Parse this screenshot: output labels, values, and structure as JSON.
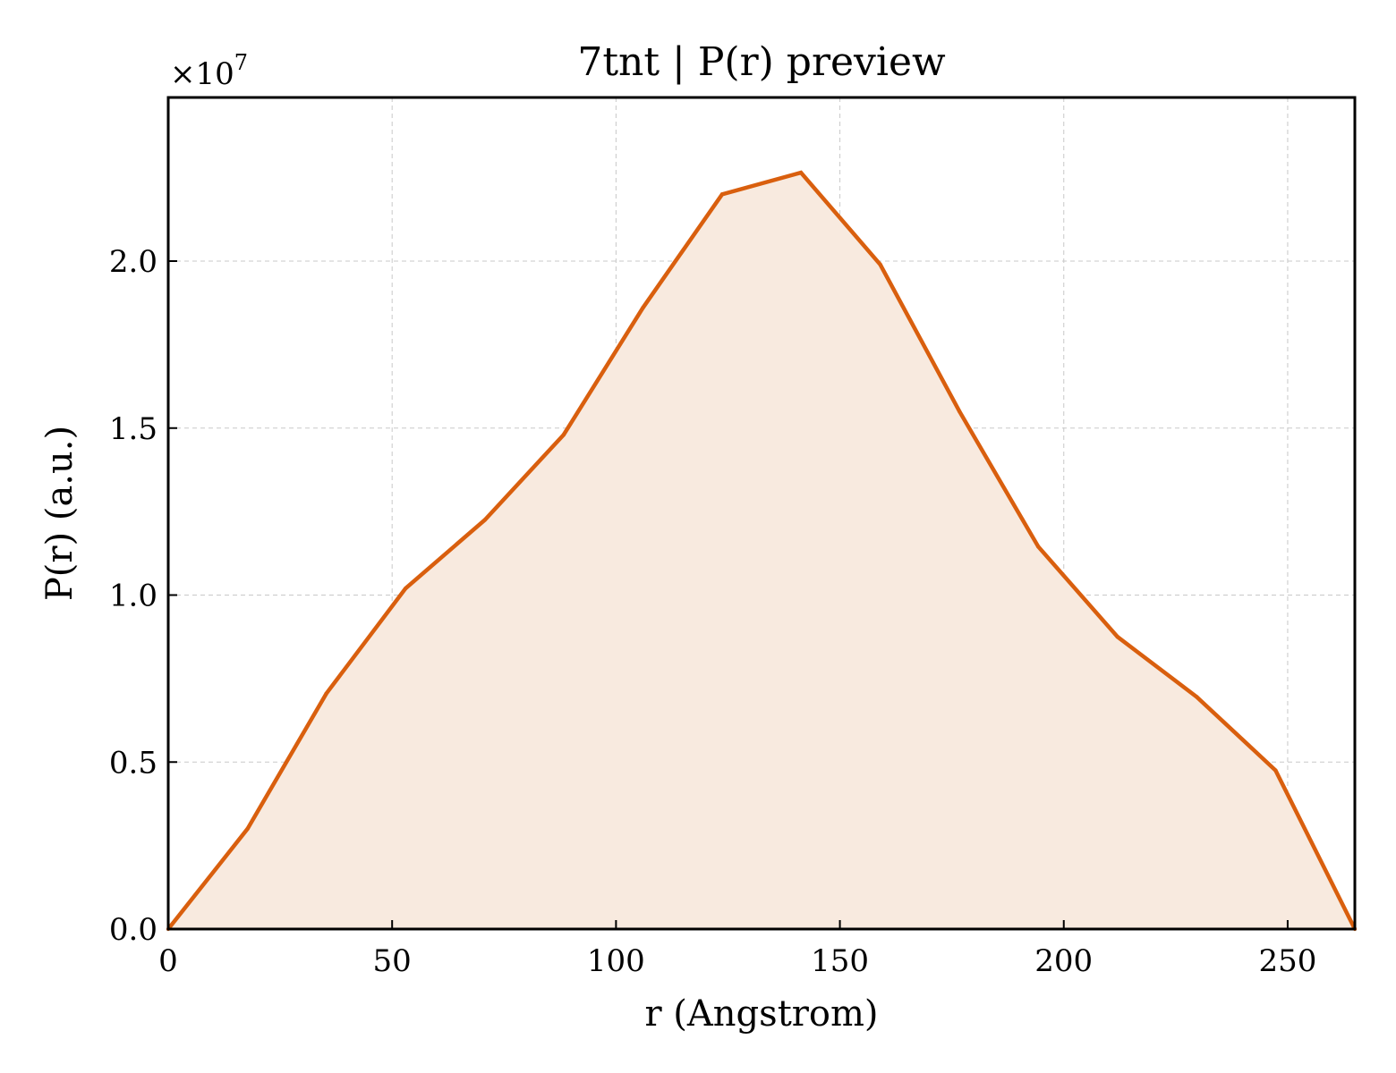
{
  "chart_data": {
    "type": "area",
    "title": "7tnt | P(r) preview",
    "xlabel": "r (Angstrom)",
    "ylabel": "P(r) (a.u.)",
    "y_multiplier_text": "×10",
    "y_multiplier_exp": "7",
    "xlim": [
      0,
      265
    ],
    "ylim": [
      0,
      24900000
    ],
    "x_ticks": [
      0,
      50,
      100,
      150,
      200,
      250
    ],
    "x_tick_labels": [
      "0",
      "50",
      "100",
      "150",
      "200",
      "250"
    ],
    "y_ticks": [
      0,
      5000000,
      10000000,
      15000000,
      20000000
    ],
    "y_tick_labels": [
      "0.0",
      "0.5",
      "1.0",
      "1.5",
      "2.0"
    ],
    "grid": true,
    "line_color": "#d95f0e",
    "fill_color": "#f8eadf",
    "series": [
      {
        "x": [
          0,
          17.7,
          35.3,
          53,
          70.7,
          88.3,
          106,
          123.7,
          141.3,
          159,
          176.7,
          194.3,
          212,
          229.7,
          247.3,
          265
        ],
        "y": [
          0,
          3000000,
          7050000,
          10200000,
          12250000,
          14800000,
          18600000,
          22000000,
          22650000,
          19900000,
          15500000,
          11450000,
          8750000,
          6950000,
          4750000,
          0
        ]
      }
    ]
  }
}
